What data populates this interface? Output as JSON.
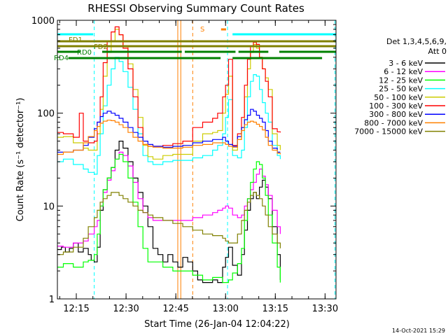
{
  "chart_data": {
    "type": "line",
    "title": "RHESSI Observing Summary Count Rates",
    "xlabel": "Start Time (26-Jan-04 12:04:22)",
    "ylabel": "Count Rate (s⁻¹ detector⁻¹)",
    "yscale": "log",
    "ylim": [
      1,
      1000
    ],
    "xlim_minutes": [
      12.4,
      40.4
    ],
    "x_ticks": [
      "12:15",
      "12:30",
      "12:45",
      "13:00",
      "13:15",
      "13:30"
    ],
    "y_ticks": [
      "1",
      "10",
      "100",
      "1000"
    ],
    "legend": {
      "header": "Det 1,3,4,5,6,9,",
      "subheader": "Att 0",
      "placement": "right"
    },
    "timestamp": "14-Oct-2021 15:29",
    "series": [
      {
        "name": "3 - 6 keV",
        "color": "#000000",
        "x": [
          12.4,
          12.8,
          13.2,
          13.6,
          14.0,
          14.5,
          15.0,
          15.5,
          15.8,
          16.1,
          16.4,
          16.7,
          17.0,
          17.4,
          17.8,
          18.2,
          18.6,
          19.0,
          19.5,
          20.0,
          20.5,
          21.0,
          21.5,
          22.0,
          22.5,
          23.0,
          23.5,
          24.0,
          24.5,
          25.0,
          25.5,
          26.0,
          26.5,
          27.0,
          27.5,
          28.0,
          28.5,
          29.0,
          29.3,
          29.6,
          30.0,
          30.5,
          30.9,
          31.2,
          31.5,
          31.8,
          32.1,
          32.4,
          32.7,
          33.0,
          33.3,
          33.6,
          34.0,
          34.5,
          34.8
        ],
        "y": [
          3.4,
          3.6,
          3.2,
          3.5,
          4.0,
          3.2,
          3.5,
          3.0,
          2.6,
          2.5,
          3.6,
          9,
          15,
          20,
          26,
          40,
          50,
          42,
          30,
          20,
          14,
          10,
          6,
          3.5,
          3.0,
          2.5,
          3.0,
          2.5,
          2.2,
          2.8,
          2.5,
          2.0,
          1.6,
          1.5,
          1.5,
          1.6,
          1.5,
          2.2,
          2.8,
          3.6,
          2.3,
          1.8,
          3.0,
          5.5,
          9,
          12,
          14,
          12,
          16,
          19,
          16,
          12,
          6,
          3.0,
          1.6
        ]
      },
      {
        "name": "6 - 12 keV",
        "color": "#ff00ff",
        "x": [
          12.4,
          13.0,
          14.0,
          15.0,
          15.5,
          16.1,
          16.4,
          16.7,
          17.0,
          17.4,
          17.8,
          18.2,
          18.6,
          19.0,
          19.5,
          20.0,
          20.5,
          21.0,
          21.5,
          22.0,
          23.0,
          24.0,
          25.0,
          26.0,
          27.0,
          28.0,
          28.5,
          29.0,
          29.3,
          29.6,
          30.0,
          30.5,
          30.9,
          31.2,
          31.5,
          31.8,
          32.1,
          32.4,
          32.7,
          33.0,
          33.3,
          33.6,
          34.0,
          34.5,
          34.8
        ],
        "y": [
          3.7,
          3.6,
          4.0,
          4.2,
          5.0,
          6.0,
          7.0,
          10,
          14,
          19,
          24,
          32,
          38,
          35,
          27,
          18,
          12,
          8.5,
          7.5,
          7.0,
          7.0,
          7.0,
          7.0,
          7.5,
          8.0,
          8.5,
          9.0,
          9.5,
          10,
          9.5,
          8.0,
          7.5,
          8.0,
          10,
          12,
          15,
          18,
          22,
          25,
          21,
          17,
          13,
          9,
          6,
          5
        ]
      },
      {
        "name": "12 - 25 keV",
        "color": "#00ff00",
        "x": [
          12.4,
          13.0,
          14.0,
          15.0,
          15.5,
          16.1,
          16.4,
          16.7,
          17.0,
          17.4,
          17.8,
          18.2,
          18.6,
          19.0,
          19.5,
          20.0,
          20.5,
          21.0,
          21.5,
          22.0,
          23.0,
          24.0,
          25.0,
          26.0,
          27.0,
          28.0,
          29.0,
          29.6,
          30.0,
          30.5,
          30.9,
          31.2,
          31.5,
          31.8,
          32.1,
          32.4,
          32.7,
          33.0,
          33.3,
          33.6,
          34.0,
          34.5,
          34.8
        ],
        "y": [
          2.2,
          2.4,
          2.2,
          2.5,
          2.6,
          3.0,
          5,
          10,
          15,
          20,
          26,
          32,
          36,
          30,
          20,
          11,
          6,
          3.5,
          2.5,
          2.5,
          2.2,
          2.0,
          2.0,
          1.8,
          1.6,
          1.7,
          1.5,
          1.6,
          1.9,
          2.4,
          3.5,
          7,
          12,
          18,
          25,
          30,
          28,
          20,
          13,
          8,
          4,
          2.2,
          1.5
        ]
      },
      {
        "name": "25 - 50 keV",
        "color": "#00ffff",
        "x": [
          12.4,
          13.0,
          14.0,
          15.0,
          15.5,
          16.1,
          16.4,
          16.7,
          17.0,
          17.4,
          17.8,
          18.2,
          18.6,
          19.0,
          19.5,
          20.0,
          20.5,
          21.0,
          21.5,
          22.0,
          23.0,
          24.0,
          25.0,
          26.0,
          27.0,
          28.0,
          28.5,
          29.0,
          29.3,
          29.6,
          30.0,
          30.5,
          30.9,
          31.2,
          31.5,
          31.8,
          32.1,
          32.4,
          32.7,
          33.0,
          33.3,
          33.6,
          34.0,
          34.5,
          34.8
        ],
        "y": [
          30,
          32,
          28,
          25,
          23,
          22,
          35,
          60,
          120,
          200,
          300,
          400,
          360,
          280,
          190,
          110,
          60,
          35,
          30,
          28,
          30,
          31,
          31,
          33,
          35,
          40,
          45,
          60,
          90,
          140,
          35,
          33,
          40,
          70,
          150,
          220,
          260,
          250,
          180,
          130,
          100,
          80,
          45,
          35,
          32
        ]
      },
      {
        "name": "50 - 100 keV",
        "color": "#cccc00",
        "x": [
          12.4,
          13.0,
          14.0,
          15.0,
          15.5,
          16.1,
          16.4,
          16.7,
          17.0,
          17.4,
          17.8,
          18.2,
          18.6,
          19.0,
          19.5,
          20.0,
          20.5,
          21.0,
          21.5,
          22.0,
          23.0,
          24.0,
          25.0,
          26.0,
          27.0,
          28.0,
          28.5,
          29.0,
          29.3,
          29.6,
          30.0,
          30.5,
          30.9,
          31.2,
          31.5,
          31.8,
          32.1,
          32.4,
          32.7,
          33.0,
          33.3,
          33.6,
          34.0,
          34.5,
          34.8
        ],
        "y": [
          55,
          56,
          48,
          42,
          40,
          40,
          60,
          110,
          250,
          450,
          600,
          800,
          700,
          520,
          340,
          180,
          90,
          45,
          34,
          32,
          35,
          36,
          36,
          50,
          60,
          62,
          65,
          100,
          160,
          250,
          40,
          52,
          70,
          150,
          300,
          450,
          550,
          500,
          400,
          300,
          240,
          180,
          60,
          45,
          40
        ]
      },
      {
        "name": "100 - 300 keV",
        "color": "#ff0000",
        "x": [
          12.4,
          13.0,
          14.0,
          14.6,
          15.0,
          15.5,
          16.1,
          16.4,
          16.7,
          17.0,
          17.4,
          17.8,
          18.2,
          18.6,
          19.0,
          19.5,
          20.0,
          20.5,
          21.0,
          21.5,
          22.0,
          23.0,
          24.0,
          25.0,
          26.0,
          27.0,
          28.0,
          28.5,
          29.0,
          29.3,
          29.6,
          30.0,
          30.5,
          30.9,
          31.2,
          31.5,
          31.8,
          32.1,
          32.4,
          32.7,
          33.0,
          33.3,
          33.6,
          34.0,
          34.5,
          34.8
        ],
        "y": [
          62,
          60,
          55,
          100,
          50,
          48,
          50,
          80,
          150,
          350,
          600,
          750,
          850,
          700,
          500,
          300,
          150,
          70,
          46,
          44,
          44,
          45,
          47,
          50,
          70,
          80,
          88,
          100,
          150,
          200,
          380,
          45,
          60,
          90,
          200,
          380,
          520,
          580,
          550,
          400,
          300,
          220,
          150,
          68,
          63,
          62
        ]
      },
      {
        "name": "300 - 800 keV",
        "color": "#0000ff",
        "x": [
          12.4,
          13.0,
          14.0,
          15.0,
          15.5,
          16.1,
          16.4,
          16.7,
          17.0,
          17.4,
          17.8,
          18.2,
          18.6,
          19.0,
          19.5,
          20.0,
          20.5,
          21.0,
          21.5,
          22.0,
          23.0,
          24.0,
          25.0,
          26.0,
          27.0,
          28.0,
          29.0,
          29.3,
          29.6,
          30.0,
          30.5,
          30.9,
          31.2,
          31.5,
          31.8,
          32.1,
          32.4,
          32.7,
          33.0,
          33.3,
          33.6,
          34.0,
          34.5,
          34.8
        ],
        "y": [
          38,
          38,
          40,
          45,
          55,
          68,
          80,
          92,
          100,
          105,
          100,
          95,
          88,
          80,
          70,
          62,
          55,
          50,
          46,
          44,
          43,
          44,
          45,
          48,
          50,
          52,
          55,
          50,
          46,
          44,
          56,
          70,
          85,
          95,
          110,
          105,
          95,
          88,
          80,
          65,
          50,
          42,
          38,
          38
        ]
      },
      {
        "name": "800 - 7000 keV",
        "color": "#ff8000",
        "x": [
          12.4,
          13.0,
          14.0,
          15.0,
          15.5,
          16.1,
          16.4,
          16.7,
          17.0,
          17.4,
          17.8,
          18.2,
          18.6,
          19.0,
          19.5,
          20.0,
          20.5,
          21.0,
          21.5,
          22.0,
          23.0,
          24.0,
          25.0,
          26.0,
          27.0,
          28.0,
          29.0,
          29.3,
          29.6,
          30.0,
          30.5,
          30.9,
          31.2,
          31.5,
          31.8,
          32.1,
          32.4,
          32.7,
          33.0,
          33.3,
          33.6,
          34.0,
          34.5,
          34.8
        ],
        "y": [
          36,
          38,
          40,
          48,
          56,
          65,
          72,
          78,
          82,
          84,
          83,
          80,
          75,
          70,
          62,
          55,
          50,
          46,
          44,
          43,
          42,
          42,
          43,
          45,
          46,
          48,
          48,
          46,
          44,
          43,
          52,
          65,
          75,
          80,
          82,
          80,
          76,
          72,
          66,
          55,
          45,
          40,
          37,
          36
        ]
      },
      {
        "name": "7000 - 15000 keV",
        "color": "#808000",
        "x": [
          12.4,
          13.0,
          14.0,
          15.0,
          15.5,
          16.1,
          16.4,
          16.7,
          17.0,
          17.4,
          17.8,
          18.2,
          18.6,
          19.0,
          19.5,
          20.0,
          20.5,
          21.0,
          21.5,
          22.0,
          23.0,
          24.0,
          25.0,
          26.0,
          27.0,
          28.0,
          29.0,
          29.3,
          29.6,
          30.0,
          30.5,
          30.9,
          31.2,
          31.5,
          31.8,
          32.1,
          32.4,
          32.7,
          33.0,
          33.3,
          33.6,
          34.0,
          34.5,
          34.8
        ],
        "y": [
          3.0,
          3.2,
          3.6,
          4.5,
          6.0,
          7.5,
          9.0,
          11,
          12,
          13,
          14,
          14,
          13,
          12,
          11,
          10,
          9,
          8.5,
          8,
          7.5,
          7,
          6.5,
          6,
          5.5,
          5,
          4.8,
          4.5,
          4.2,
          4.0,
          4.0,
          5,
          7,
          9,
          11,
          13,
          14,
          13,
          12,
          10,
          8,
          6,
          5,
          4,
          3.5
        ]
      }
    ],
    "flags": [
      {
        "label": "S",
        "color": "#ff8000",
        "segments": [
          [
            28.85,
            29.35
          ]
        ],
        "row": 0
      },
      {
        "label": "FD1",
        "color": "#00ffff",
        "segments": [
          [
            12.4,
            16.0
          ],
          [
            30.0,
            40.4
          ]
        ],
        "row": 1
      },
      {
        "label": "FD1",
        "color": "#808000",
        "segments": [
          [
            12.4,
            40.4
          ]
        ],
        "row": 2
      },
      {
        "label": "FD2",
        "color": "#808000",
        "segments": [
          [
            12.4,
            40.4
          ]
        ],
        "row": 3
      },
      {
        "label": "RD0",
        "color": "#008000",
        "segments": [
          [
            12.4,
            14.7
          ],
          [
            16.9,
            24.9
          ],
          [
            25.2,
            30.3
          ],
          [
            30.6,
            33.6
          ],
          [
            34.7,
            40.4
          ]
        ],
        "row": 4
      },
      {
        "label": "RD4",
        "color": "#008000",
        "segments": [
          [
            13.5,
            28.8
          ],
          [
            30.0,
            39.0
          ]
        ],
        "row": 5
      }
    ],
    "vertical_markers": [
      {
        "x": 16.1,
        "color": "#00ffff",
        "style": "dashed"
      },
      {
        "x": 29.5,
        "color": "#00ffff",
        "style": "dashed"
      },
      {
        "x": 40.3,
        "color": "#00ffff",
        "style": "dashed"
      },
      {
        "x": 24.5,
        "color": "#ff8000",
        "style": "solid"
      },
      {
        "x": 24.8,
        "color": "#ff8000",
        "style": "solid"
      },
      {
        "x": 26.0,
        "color": "#ff8000",
        "style": "dashed"
      }
    ]
  }
}
